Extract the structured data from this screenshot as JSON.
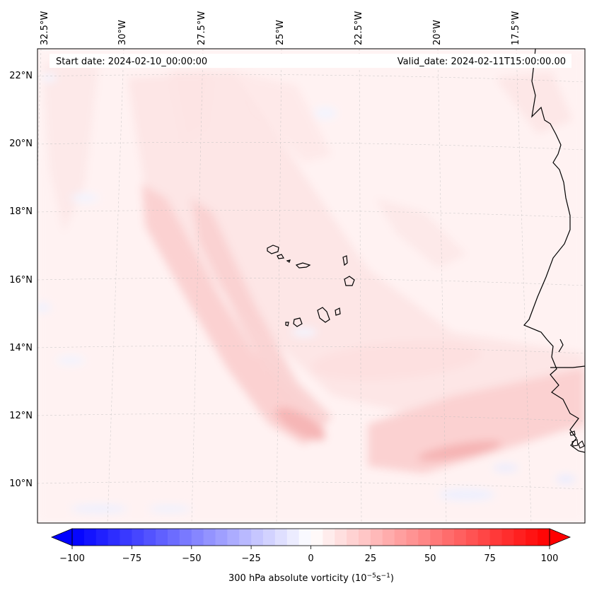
{
  "map": {
    "start_date": "Start date: 2024-02-10_00:00:00",
    "valid_date": "Valid_date: 2024-02-11T15:00:00.00",
    "lon_labels": [
      "32.5°W",
      "30°W",
      "27.5°W",
      "25°W",
      "22.5°W",
      "20°W",
      "17.5°W"
    ],
    "lat_labels": [
      "22°N",
      "20°N",
      "18°N",
      "16°N",
      "14°N",
      "12°N",
      "10°N"
    ],
    "field_colors": {
      "band_strong": "#f8b9b9",
      "band_medium": "#fbd2d2",
      "band_light": "#fde6e6",
      "background": "#fff4f4",
      "negative": "#eef1ff",
      "coast": "#000000"
    }
  },
  "colorbar": {
    "ticks": [
      "−100",
      "−75",
      "−50",
      "−25",
      "0",
      "25",
      "50",
      "75",
      "100"
    ],
    "label_prefix": "300 hPa absolute vorticity (10",
    "label_exp1": "−5",
    "label_mid": "s",
    "label_exp2": "−1",
    "label_suffix": ")",
    "vmin": -100,
    "vmax": 100,
    "levels": 41,
    "cmap": "bwr"
  }
}
